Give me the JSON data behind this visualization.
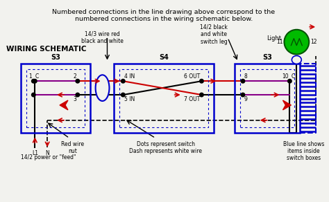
{
  "title_line1": "Numbered connections in the line drawing above correspond to the",
  "title_line2": "numbered connections in the wiring schematic below.",
  "bg_color": "#f2f2ee",
  "section_label": "WIRING SCHEMATIC",
  "wire_label_143": "14/3 wire red\nblack and white",
  "wire_label_142": "14/2 black\nand white\nswitch leg",
  "feed_label": "14/2 power or \"feed\"",
  "red_nut_label": "Red wire\nnut",
  "dots_label": "Dots represent switch\nDash represents white wire",
  "blue_label": "Blue line shows\nitems inside\nswitch boxes",
  "colors": {
    "black": "#000000",
    "red": "#cc0000",
    "purple": "#880088",
    "blue": "#0000cc",
    "green": "#00bb00",
    "darkgreen": "#005500"
  }
}
